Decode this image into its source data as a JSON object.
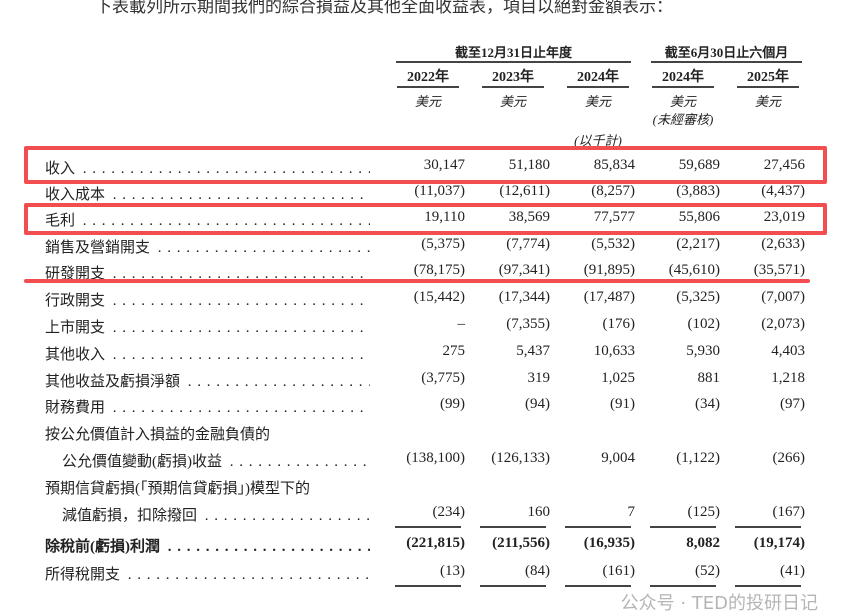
{
  "intro": "下表載列所示期間我們的綜合損益及其他全面收益表，項目以絕對金額表示：",
  "header": {
    "group1": "截至12月31日止年度",
    "group2": "截至6月30日止六個月",
    "years": [
      "2022年",
      "2023年",
      "2024年",
      "2024年",
      "2025年"
    ],
    "units": [
      "美元",
      "美元",
      "美元",
      "美元",
      "美元"
    ],
    "unaudited": "(未經審核)",
    "thousands": "(以千計)"
  },
  "rows": [
    {
      "label": "收入",
      "values": [
        "30,147",
        "51,180",
        "85,834",
        "59,689",
        "27,456"
      ]
    },
    {
      "label": "收入成本",
      "values": [
        "(11,037)",
        "(12,611)",
        "(8,257)",
        "(3,883)",
        "(4,437)"
      ]
    },
    {
      "label": "毛利",
      "values": [
        "19,110",
        "38,569",
        "77,577",
        "55,806",
        "23,019"
      ]
    },
    {
      "label": "銷售及營銷開支",
      "values": [
        "(5,375)",
        "(7,774)",
        "(5,532)",
        "(2,217)",
        "(2,633)"
      ]
    },
    {
      "label": "研發開支",
      "values": [
        "(78,175)",
        "(97,341)",
        "(91,895)",
        "(45,610)",
        "(35,571)"
      ]
    },
    {
      "label": "行政開支",
      "values": [
        "(15,442)",
        "(17,344)",
        "(17,487)",
        "(5,325)",
        "(7,007)"
      ]
    },
    {
      "label": "上市開支",
      "values": [
        "–",
        "(7,355)",
        "(176)",
        "(102)",
        "(2,073)"
      ]
    },
    {
      "label": "其他收入",
      "values": [
        "275",
        "5,437",
        "10,633",
        "5,930",
        "4,403"
      ]
    },
    {
      "label": "其他收益及虧損淨額",
      "values": [
        "(3,775)",
        "319",
        "1,025",
        "881",
        "1,218"
      ]
    },
    {
      "label": "財務費用",
      "values": [
        "(99)",
        "(94)",
        "(91)",
        "(34)",
        "(97)"
      ]
    },
    {
      "label": "按公允價值計入損益的金融負債的",
      "values": []
    },
    {
      "label": "公允價值變動(虧損)收益",
      "values": [
        "(138,100)",
        "(126,133)",
        "9,004",
        "(1,122)",
        "(266)"
      ]
    },
    {
      "label": "預期信貸虧損(「預期信貸虧損」)模型下的",
      "values": []
    },
    {
      "label": "減值虧損，扣除撥回",
      "values": [
        "(234)",
        "160",
        "7",
        "(125)",
        "(167)"
      ]
    },
    {
      "label": "除稅前(虧損)利潤",
      "values": [
        "(221,815)",
        "(211,556)",
        "(16,935)",
        "8,082",
        "(19,174)"
      ]
    },
    {
      "label": "所得稅開支",
      "values": [
        "(13)",
        "(84)",
        "(161)",
        "(52)",
        "(41)"
      ]
    }
  ],
  "watermark": "公众号 · TED的投研日记",
  "colors": {
    "highlight": "#f24e50"
  }
}
